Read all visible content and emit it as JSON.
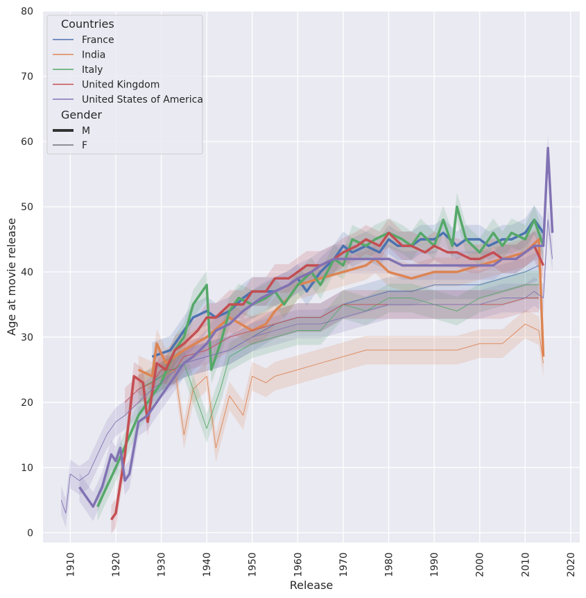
{
  "chart_data": {
    "type": "line",
    "xlabel": "Release",
    "ylabel": "Age at movie release",
    "xlim": [
      1904,
      2022
    ],
    "ylim": [
      -1.5,
      80
    ],
    "xticks": [
      1910,
      1920,
      1930,
      1940,
      1950,
      1960,
      1970,
      1980,
      1990,
      2000,
      2010,
      2020
    ],
    "yticks": [
      0,
      10,
      20,
      30,
      40,
      50,
      60,
      70,
      80
    ],
    "grid": true,
    "background": "#eaeaf2",
    "legend_placement": "top-left",
    "legend": {
      "title_hue": "Countries",
      "title_size": "Gender",
      "size_entries": [
        {
          "label": "M",
          "width": 4
        },
        {
          "label": "F",
          "width": 1
        }
      ]
    },
    "series": [
      {
        "name": "France",
        "color": "#4c72b0",
        "M": [
          [
            1928,
            27
          ],
          [
            1932,
            28
          ],
          [
            1935,
            31
          ],
          [
            1937,
            33
          ],
          [
            1940,
            34
          ],
          [
            1942,
            33
          ],
          [
            1945,
            34
          ],
          [
            1948,
            36
          ],
          [
            1950,
            37
          ],
          [
            1953,
            37
          ],
          [
            1955,
            37
          ],
          [
            1958,
            38
          ],
          [
            1960,
            39
          ],
          [
            1962,
            37
          ],
          [
            1965,
            40
          ],
          [
            1968,
            42
          ],
          [
            1970,
            44
          ],
          [
            1972,
            43
          ],
          [
            1975,
            44
          ],
          [
            1978,
            43
          ],
          [
            1980,
            45
          ],
          [
            1982,
            44
          ],
          [
            1985,
            44
          ],
          [
            1987,
            45
          ],
          [
            1990,
            45
          ],
          [
            1992,
            46
          ],
          [
            1995,
            44
          ],
          [
            1997,
            45
          ],
          [
            2000,
            45
          ],
          [
            2002,
            44
          ],
          [
            2005,
            45
          ],
          [
            2007,
            45
          ],
          [
            2010,
            46
          ],
          [
            2012,
            48
          ],
          [
            2014,
            46
          ]
        ],
        "F": [
          [
            1928,
            23
          ],
          [
            1930,
            24
          ],
          [
            1935,
            26
          ],
          [
            1940,
            27
          ],
          [
            1945,
            28
          ],
          [
            1950,
            30
          ],
          [
            1955,
            32
          ],
          [
            1960,
            33
          ],
          [
            1965,
            33
          ],
          [
            1970,
            35
          ],
          [
            1975,
            36
          ],
          [
            1980,
            37
          ],
          [
            1985,
            37
          ],
          [
            1990,
            38
          ],
          [
            1995,
            38
          ],
          [
            2000,
            38
          ],
          [
            2005,
            39
          ],
          [
            2010,
            40
          ],
          [
            2013,
            41
          ]
        ]
      },
      {
        "name": "India",
        "color": "#dd8452",
        "M": [
          [
            1925,
            25
          ],
          [
            1928,
            24
          ],
          [
            1929,
            29
          ],
          [
            1931,
            26
          ],
          [
            1935,
            28
          ],
          [
            1940,
            30
          ],
          [
            1945,
            33
          ],
          [
            1950,
            31
          ],
          [
            1953,
            32
          ],
          [
            1955,
            34
          ],
          [
            1958,
            36
          ],
          [
            1960,
            38
          ],
          [
            1965,
            39
          ],
          [
            1970,
            40
          ],
          [
            1975,
            41
          ],
          [
            1977,
            42
          ],
          [
            1980,
            40
          ],
          [
            1985,
            39
          ],
          [
            1990,
            40
          ],
          [
            1995,
            40
          ],
          [
            2000,
            41
          ],
          [
            2005,
            42
          ],
          [
            2010,
            43
          ],
          [
            2013,
            45
          ],
          [
            2014,
            27
          ]
        ],
        "F": [
          [
            1930,
            24
          ],
          [
            1933,
            25
          ],
          [
            1935,
            15
          ],
          [
            1937,
            22
          ],
          [
            1940,
            24
          ],
          [
            1942,
            13
          ],
          [
            1945,
            21
          ],
          [
            1948,
            18
          ],
          [
            1950,
            24
          ],
          [
            1953,
            23
          ],
          [
            1955,
            24
          ],
          [
            1960,
            25
          ],
          [
            1965,
            26
          ],
          [
            1970,
            27
          ],
          [
            1975,
            28
          ],
          [
            1980,
            28
          ],
          [
            1985,
            28
          ],
          [
            1990,
            28
          ],
          [
            1995,
            28
          ],
          [
            2000,
            29
          ],
          [
            2005,
            29
          ],
          [
            2010,
            32
          ],
          [
            2013,
            31
          ],
          [
            2014,
            26
          ]
        ]
      },
      {
        "name": "Italy",
        "color": "#55a868",
        "M": [
          [
            1916,
            4
          ],
          [
            1920,
            10
          ],
          [
            1925,
            18
          ],
          [
            1930,
            23
          ],
          [
            1933,
            28
          ],
          [
            1935,
            30
          ],
          [
            1937,
            35
          ],
          [
            1940,
            38
          ],
          [
            1941,
            25
          ],
          [
            1943,
            29
          ],
          [
            1945,
            34
          ],
          [
            1947,
            36
          ],
          [
            1950,
            35
          ],
          [
            1953,
            36
          ],
          [
            1955,
            37
          ],
          [
            1957,
            35
          ],
          [
            1960,
            38
          ],
          [
            1963,
            40
          ],
          [
            1965,
            38
          ],
          [
            1968,
            42
          ],
          [
            1970,
            41
          ],
          [
            1972,
            45
          ],
          [
            1975,
            44
          ],
          [
            1977,
            45
          ],
          [
            1980,
            46
          ],
          [
            1983,
            45
          ],
          [
            1985,
            44
          ],
          [
            1987,
            46
          ],
          [
            1990,
            44
          ],
          [
            1992,
            48
          ],
          [
            1994,
            44
          ],
          [
            1995,
            50
          ],
          [
            1997,
            45
          ],
          [
            2000,
            43
          ],
          [
            2003,
            46
          ],
          [
            2005,
            44
          ],
          [
            2007,
            46
          ],
          [
            2010,
            45
          ],
          [
            2012,
            48
          ],
          [
            2014,
            44
          ]
        ],
        "F": [
          [
            1925,
            22
          ],
          [
            1930,
            24
          ],
          [
            1935,
            26
          ],
          [
            1940,
            16
          ],
          [
            1943,
            22
          ],
          [
            1945,
            27
          ],
          [
            1950,
            29
          ],
          [
            1955,
            30
          ],
          [
            1960,
            31
          ],
          [
            1965,
            31
          ],
          [
            1970,
            35
          ],
          [
            1975,
            34
          ],
          [
            1980,
            36
          ],
          [
            1985,
            36
          ],
          [
            1990,
            35
          ],
          [
            1995,
            34
          ],
          [
            2000,
            36
          ],
          [
            2005,
            37
          ],
          [
            2010,
            38
          ],
          [
            2013,
            38
          ]
        ]
      },
      {
        "name": "United Kingdom",
        "color": "#c44e52",
        "M": [
          [
            1919,
            2
          ],
          [
            1920,
            3
          ],
          [
            1922,
            12
          ],
          [
            1924,
            24
          ],
          [
            1926,
            23
          ],
          [
            1927,
            17
          ],
          [
            1929,
            26
          ],
          [
            1931,
            25
          ],
          [
            1933,
            28
          ],
          [
            1935,
            29
          ],
          [
            1938,
            31
          ],
          [
            1940,
            33
          ],
          [
            1942,
            33
          ],
          [
            1945,
            35
          ],
          [
            1948,
            35
          ],
          [
            1950,
            37
          ],
          [
            1953,
            37
          ],
          [
            1955,
            39
          ],
          [
            1958,
            39
          ],
          [
            1960,
            40
          ],
          [
            1962,
            41
          ],
          [
            1965,
            41
          ],
          [
            1968,
            42
          ],
          [
            1970,
            43
          ],
          [
            1973,
            44
          ],
          [
            1975,
            45
          ],
          [
            1978,
            44
          ],
          [
            1980,
            46
          ],
          [
            1983,
            44
          ],
          [
            1985,
            44
          ],
          [
            1988,
            43
          ],
          [
            1990,
            44
          ],
          [
            1993,
            43
          ],
          [
            1995,
            43
          ],
          [
            1998,
            42
          ],
          [
            2000,
            42
          ],
          [
            2003,
            43
          ],
          [
            2005,
            42
          ],
          [
            2008,
            42
          ],
          [
            2010,
            43
          ],
          [
            2012,
            44
          ],
          [
            2014,
            41
          ]
        ],
        "F": [
          [
            1922,
            20
          ],
          [
            1925,
            22
          ],
          [
            1928,
            23
          ],
          [
            1930,
            25
          ],
          [
            1933,
            25
          ],
          [
            1935,
            27
          ],
          [
            1940,
            28
          ],
          [
            1945,
            30
          ],
          [
            1950,
            31
          ],
          [
            1955,
            32
          ],
          [
            1960,
            33
          ],
          [
            1965,
            33
          ],
          [
            1970,
            35
          ],
          [
            1975,
            35
          ],
          [
            1980,
            35
          ],
          [
            1985,
            35
          ],
          [
            1990,
            35
          ],
          [
            1995,
            35
          ],
          [
            2000,
            35
          ],
          [
            2005,
            35
          ],
          [
            2010,
            36
          ],
          [
            2013,
            36
          ]
        ]
      },
      {
        "name": "United States of America",
        "color": "#8172b3",
        "M": [
          [
            1912,
            7
          ],
          [
            1915,
            4
          ],
          [
            1917,
            7
          ],
          [
            1919,
            12
          ],
          [
            1920,
            11
          ],
          [
            1921,
            13
          ],
          [
            1922,
            8
          ],
          [
            1923,
            9
          ],
          [
            1925,
            17
          ],
          [
            1927,
            18
          ],
          [
            1929,
            20
          ],
          [
            1930,
            21
          ],
          [
            1932,
            23
          ],
          [
            1935,
            26
          ],
          [
            1937,
            27
          ],
          [
            1940,
            29
          ],
          [
            1942,
            31
          ],
          [
            1945,
            32
          ],
          [
            1948,
            34
          ],
          [
            1950,
            35
          ],
          [
            1952,
            36
          ],
          [
            1955,
            37
          ],
          [
            1958,
            38
          ],
          [
            1960,
            39
          ],
          [
            1963,
            40
          ],
          [
            1965,
            41
          ],
          [
            1968,
            42
          ],
          [
            1970,
            42
          ],
          [
            1973,
            42
          ],
          [
            1975,
            42
          ],
          [
            1978,
            42
          ],
          [
            1980,
            42
          ],
          [
            1983,
            41
          ],
          [
            1985,
            41
          ],
          [
            1988,
            41
          ],
          [
            1990,
            41
          ],
          [
            1993,
            41
          ],
          [
            1995,
            41
          ],
          [
            1998,
            41
          ],
          [
            2000,
            41
          ],
          [
            2003,
            41
          ],
          [
            2005,
            42
          ],
          [
            2008,
            42
          ],
          [
            2010,
            43
          ],
          [
            2012,
            44
          ],
          [
            2014,
            44
          ],
          [
            2015,
            59
          ],
          [
            2016,
            46
          ]
        ],
        "F": [
          [
            1908,
            5
          ],
          [
            1909,
            3
          ],
          [
            1910,
            9
          ],
          [
            1912,
            8
          ],
          [
            1914,
            9
          ],
          [
            1916,
            12
          ],
          [
            1918,
            15
          ],
          [
            1920,
            17
          ],
          [
            1922,
            18
          ],
          [
            1925,
            20
          ],
          [
            1928,
            22
          ],
          [
            1930,
            23
          ],
          [
            1935,
            26
          ],
          [
            1940,
            27
          ],
          [
            1945,
            28
          ],
          [
            1950,
            30
          ],
          [
            1955,
            31
          ],
          [
            1960,
            32
          ],
          [
            1965,
            32
          ],
          [
            1970,
            33
          ],
          [
            1975,
            34
          ],
          [
            1980,
            35
          ],
          [
            1985,
            35
          ],
          [
            1990,
            35
          ],
          [
            1995,
            35
          ],
          [
            2000,
            35
          ],
          [
            2005,
            36
          ],
          [
            2010,
            36
          ],
          [
            2012,
            37
          ],
          [
            2014,
            36
          ],
          [
            2015,
            48
          ],
          [
            2016,
            42
          ]
        ]
      }
    ]
  }
}
